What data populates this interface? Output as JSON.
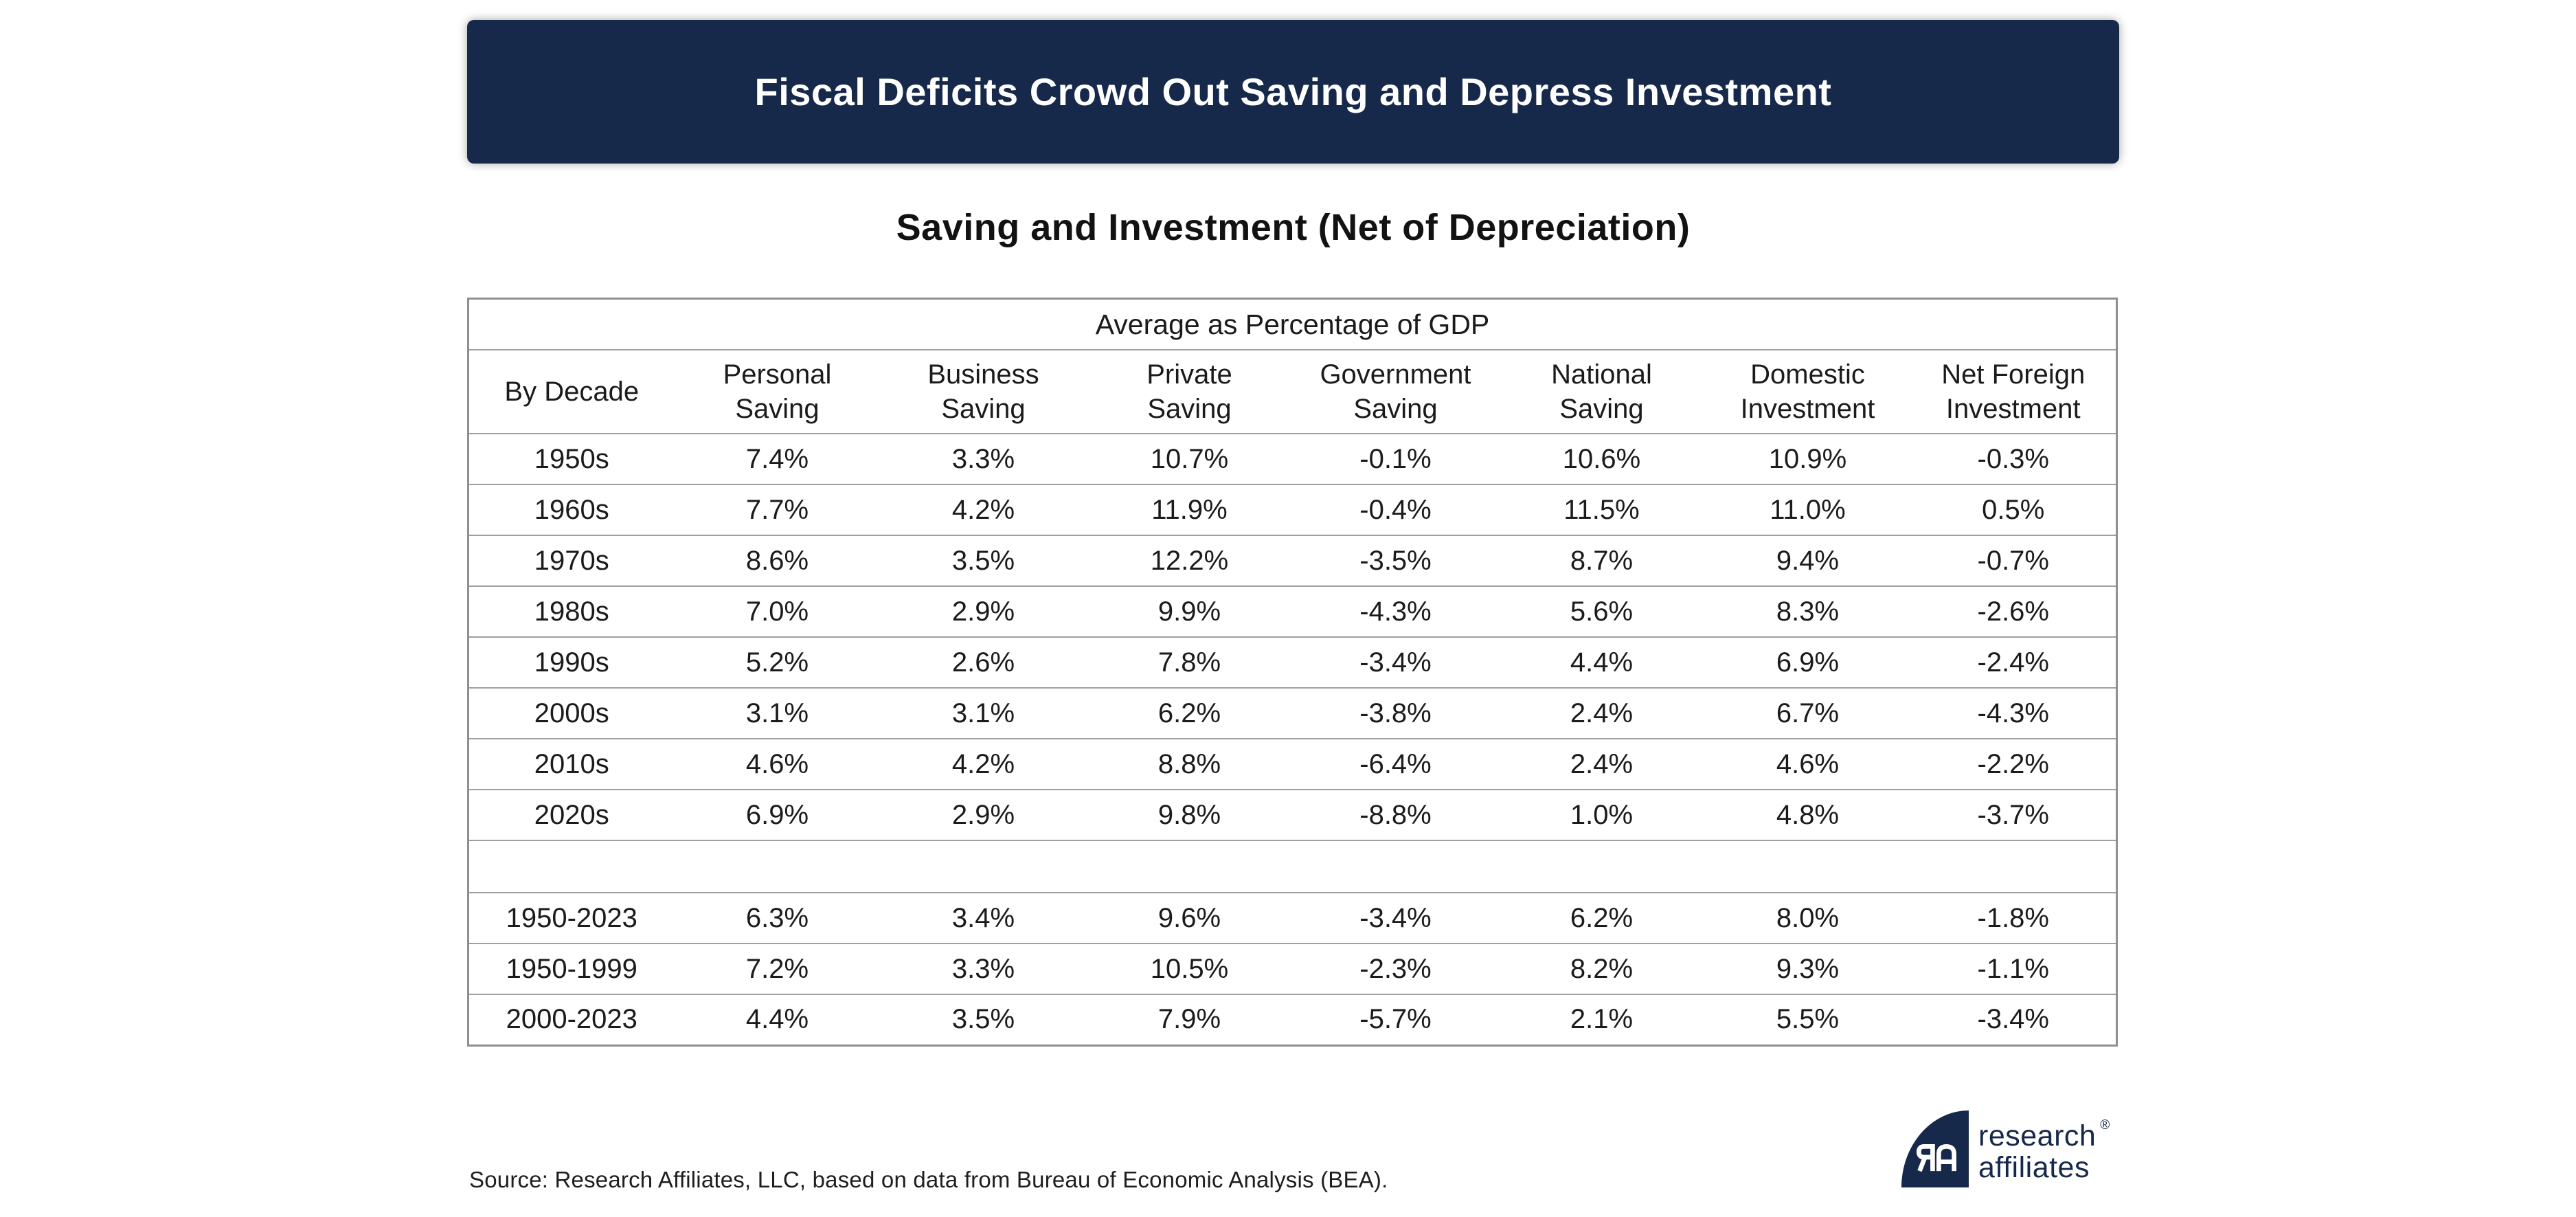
{
  "banner": {
    "title": "Fiscal Deficits Crowd Out Saving and Depress Investment",
    "bg_color": "#17294B",
    "text_color": "#FFFFFF"
  },
  "chart_data": {
    "type": "table",
    "title": "Saving and Investment (Net of Depreciation)",
    "span_header": "Average as Percentage of GDP",
    "columns": [
      [
        "By Decade"
      ],
      [
        "Personal",
        "Saving"
      ],
      [
        "Business",
        "Saving"
      ],
      [
        "Private",
        "Saving"
      ],
      [
        "Government",
        "Saving"
      ],
      [
        "National",
        "Saving"
      ],
      [
        "Domestic",
        "Investment"
      ],
      [
        "Net Foreign",
        "Investment"
      ]
    ],
    "decade_rows": [
      {
        "label": "1950s",
        "values": [
          "7.4%",
          "3.3%",
          "10.7%",
          "-0.1%",
          "10.6%",
          "10.9%",
          "-0.3%"
        ]
      },
      {
        "label": "1960s",
        "values": [
          "7.7%",
          "4.2%",
          "11.9%",
          "-0.4%",
          "11.5%",
          "11.0%",
          "0.5%"
        ]
      },
      {
        "label": "1970s",
        "values": [
          "8.6%",
          "3.5%",
          "12.2%",
          "-3.5%",
          "8.7%",
          "9.4%",
          "-0.7%"
        ]
      },
      {
        "label": "1980s",
        "values": [
          "7.0%",
          "2.9%",
          "9.9%",
          "-4.3%",
          "5.6%",
          "8.3%",
          "-2.6%"
        ]
      },
      {
        "label": "1990s",
        "values": [
          "5.2%",
          "2.6%",
          "7.8%",
          "-3.4%",
          "4.4%",
          "6.9%",
          "-2.4%"
        ]
      },
      {
        "label": "2000s",
        "values": [
          "3.1%",
          "3.1%",
          "6.2%",
          "-3.8%",
          "2.4%",
          "6.7%",
          "-4.3%"
        ]
      },
      {
        "label": "2010s",
        "values": [
          "4.6%",
          "4.2%",
          "8.8%",
          "-6.4%",
          "2.4%",
          "4.6%",
          "-2.2%"
        ]
      },
      {
        "label": "2020s",
        "values": [
          "6.9%",
          "2.9%",
          "9.8%",
          "-8.8%",
          "1.0%",
          "4.8%",
          "-3.7%"
        ]
      }
    ],
    "summary_rows": [
      {
        "label": "1950-2023",
        "values": [
          "6.3%",
          "3.4%",
          "9.6%",
          "-3.4%",
          "6.2%",
          "8.0%",
          "-1.8%"
        ]
      },
      {
        "label": "1950-1999",
        "values": [
          "7.2%",
          "3.3%",
          "10.5%",
          "-2.3%",
          "8.2%",
          "9.3%",
          "-1.1%"
        ]
      },
      {
        "label": "2000-2023",
        "values": [
          "4.4%",
          "3.5%",
          "7.9%",
          "-5.7%",
          "2.1%",
          "5.5%",
          "-3.4%"
        ]
      }
    ],
    "layout": {
      "grid": "horizontal-rules-only",
      "legend": "none"
    }
  },
  "source": "Source: Research Affiliates, LLC, based on data from Bureau of Economic Analysis (BEA).",
  "logo": {
    "line1": "research",
    "line2": "affiliates",
    "registered": "®",
    "color": "#17294B"
  }
}
